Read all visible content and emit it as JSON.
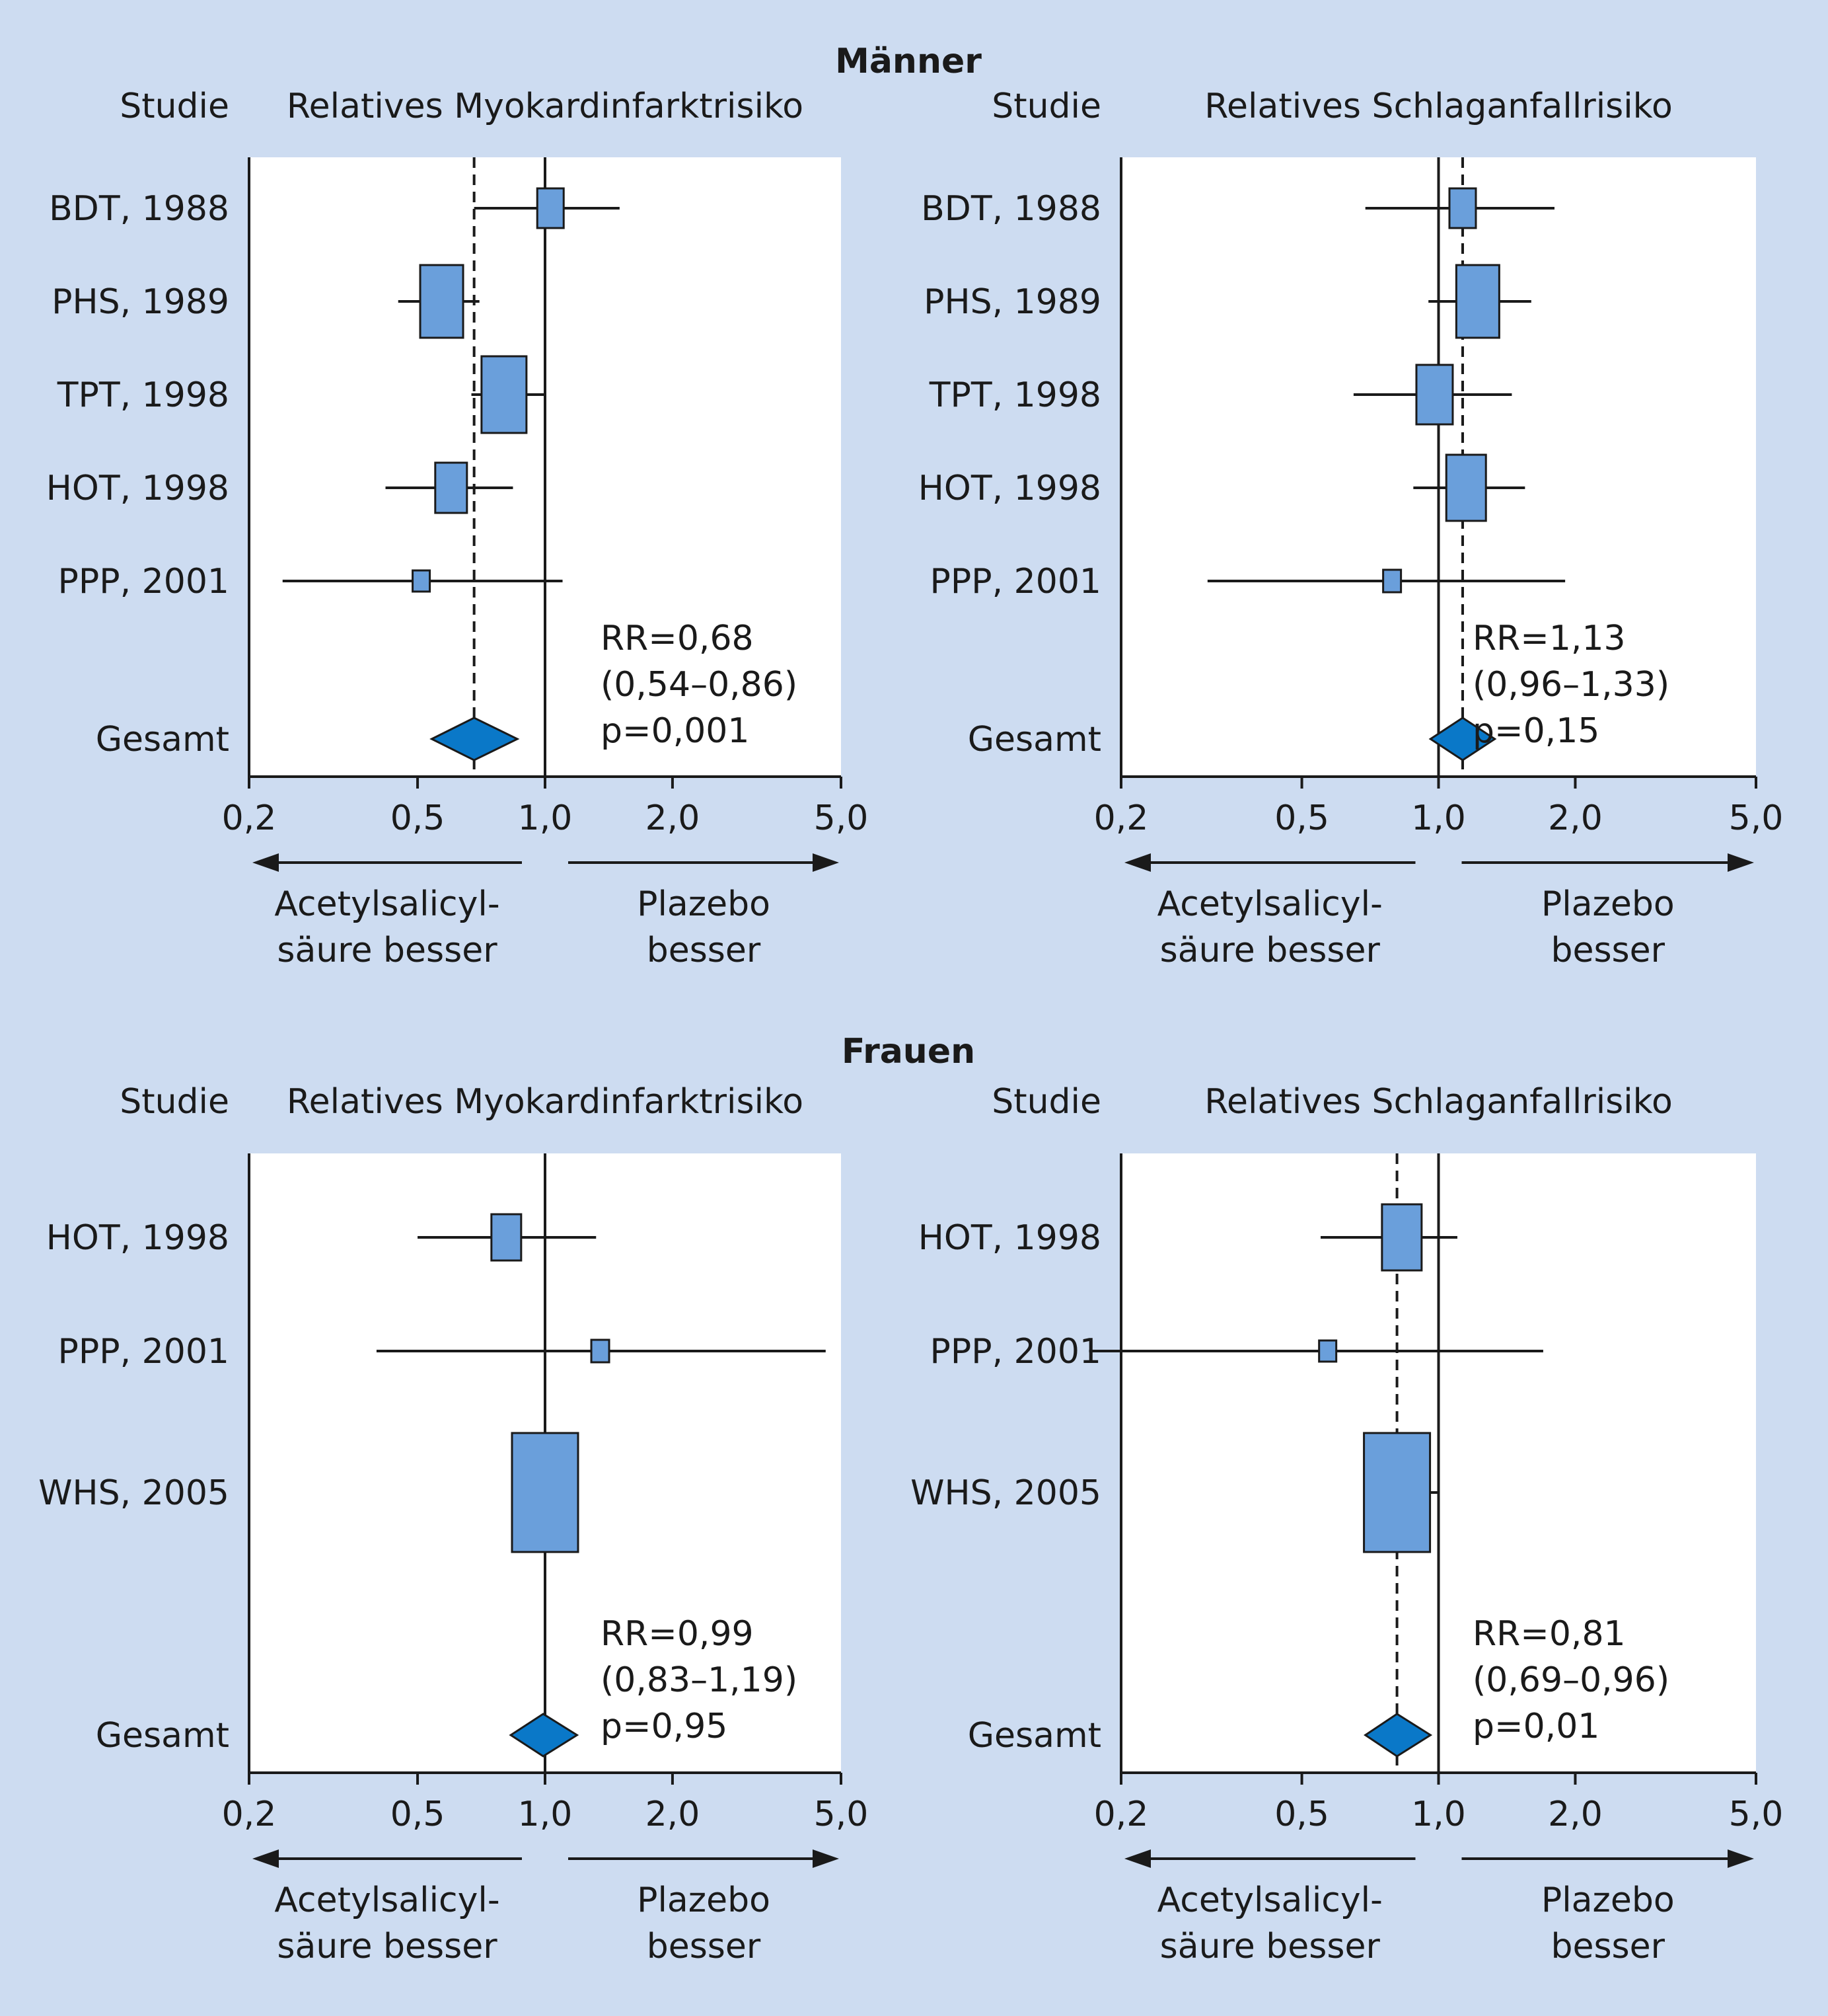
{
  "sections": [
    {
      "title": "Männer"
    },
    {
      "title": "Frauen"
    }
  ],
  "labels": {
    "study_header": "Studie",
    "overall": "Gesamt",
    "left_arrow": [
      "Acetylsalicyl-",
      "säure besser"
    ],
    "right_arrow": [
      "Plazebo",
      "besser"
    ]
  },
  "colors": {
    "background": "#cddcf1",
    "box_fill": "#6a9fdb",
    "diamond_fill": "#0a78c8",
    "line": "#1a1a1a"
  },
  "chart_data": [
    {
      "type": "forest",
      "section": "Männer",
      "title": "Relatives Myokardinfarktrisiko",
      "x_scale": "log",
      "x_ticks": [
        "0,2",
        "0,5",
        "1,0",
        "2,0",
        "5,0"
      ],
      "x_tick_values": [
        0.2,
        0.5,
        1.0,
        2.0,
        5.0
      ],
      "xlim": [
        0.2,
        5.0
      ],
      "reference_line": 1.0,
      "pooled_line": 0.68,
      "studies": [
        {
          "label": "BDT, 1988",
          "rr": 1.03,
          "ci": [
            0.68,
            1.5
          ],
          "weight": 0.2
        },
        {
          "label": "PHS, 1989",
          "rr": 0.57,
          "ci": [
            0.45,
            0.7
          ],
          "weight": 0.45
        },
        {
          "label": "TPT, 1998",
          "rr": 0.8,
          "ci": [
            0.67,
            1.0
          ],
          "weight": 0.48
        },
        {
          "label": "HOT, 1998",
          "rr": 0.6,
          "ci": [
            0.42,
            0.84
          ],
          "weight": 0.28
        },
        {
          "label": "PPP, 2001",
          "rr": 0.51,
          "ci": [
            0.24,
            1.1
          ],
          "weight": 0.06
        }
      ],
      "overall": {
        "rr": 0.68,
        "ci": [
          0.54,
          0.86
        ]
      },
      "stats": [
        "RR=0,68",
        "(0,54–0,86)",
        "p=0,001"
      ]
    },
    {
      "type": "forest",
      "section": "Männer",
      "title": "Relatives Schlaganfallrisiko",
      "x_scale": "log",
      "x_ticks": [
        "0,2",
        "0,5",
        "1,0",
        "2,0",
        "5,0"
      ],
      "x_tick_values": [
        0.2,
        0.5,
        1.0,
        2.0,
        5.0
      ],
      "xlim": [
        0.2,
        5.0
      ],
      "reference_line": 1.0,
      "pooled_line": 1.13,
      "studies": [
        {
          "label": "BDT, 1988",
          "rr": 1.13,
          "ci": [
            0.69,
            1.8
          ],
          "weight": 0.2
        },
        {
          "label": "PHS, 1989",
          "rr": 1.22,
          "ci": [
            0.95,
            1.6
          ],
          "weight": 0.45
        },
        {
          "label": "TPT, 1998",
          "rr": 0.98,
          "ci": [
            0.65,
            1.45
          ],
          "weight": 0.35
        },
        {
          "label": "HOT, 1998",
          "rr": 1.15,
          "ci": [
            0.88,
            1.55
          ],
          "weight": 0.4
        },
        {
          "label": "PPP, 2001",
          "rr": 0.79,
          "ci": [
            0.31,
            1.9
          ],
          "weight": 0.07
        }
      ],
      "overall": {
        "rr": 1.13,
        "ci": [
          0.96,
          1.33
        ]
      },
      "stats": [
        "RR=1,13",
        "(0,96–1,33)",
        "p=0,15"
      ]
    },
    {
      "type": "forest",
      "section": "Frauen",
      "title": "Relatives Myokardinfarktrisiko",
      "x_scale": "log",
      "x_ticks": [
        "0,2",
        "0,5",
        "1,0",
        "2,0",
        "5,0"
      ],
      "x_tick_values": [
        0.2,
        0.5,
        1.0,
        2.0,
        5.0
      ],
      "xlim": [
        0.2,
        5.0
      ],
      "reference_line": 1.0,
      "pooled_line": null,
      "studies": [
        {
          "label": "HOT, 1998",
          "rr": 0.81,
          "ci": [
            0.5,
            1.32
          ],
          "weight": 0.25
        },
        {
          "label": "PPP, 2001",
          "rr": 1.35,
          "ci": [
            0.4,
            4.6
          ],
          "weight": 0.07
        },
        {
          "label": "WHS, 2005",
          "rr": 1.0,
          "ci": [
            0.85,
            1.2
          ],
          "weight": 0.8
        }
      ],
      "overall": {
        "rr": 0.99,
        "ci": [
          0.83,
          1.19
        ]
      },
      "stats": [
        "RR=0,99",
        "(0,83–1,19)",
        "p=0,95"
      ]
    },
    {
      "type": "forest",
      "section": "Frauen",
      "title": "Relatives Schlaganfallrisiko",
      "x_scale": "log",
      "x_ticks": [
        "0,2",
        "0,5",
        "1,0",
        "2,0",
        "5,0"
      ],
      "x_tick_values": [
        0.2,
        0.5,
        1.0,
        2.0,
        5.0
      ],
      "xlim": [
        0.2,
        5.0
      ],
      "reference_line": 1.0,
      "pooled_line": 0.81,
      "studies": [
        {
          "label": "HOT, 1998",
          "rr": 0.83,
          "ci": [
            0.55,
            1.1
          ],
          "weight": 0.4
        },
        {
          "label": "PPP, 2001",
          "rr": 0.57,
          "ci": [
            0.17,
            1.7
          ],
          "weight": 0.06
        },
        {
          "label": "WHS, 2005",
          "rr": 0.81,
          "ci": [
            0.69,
            1.0
          ],
          "weight": 0.8
        }
      ],
      "overall": {
        "rr": 0.81,
        "ci": [
          0.69,
          0.96
        ]
      },
      "stats": [
        "RR=0,81",
        "(0,69–0,96)",
        "p=0,01"
      ]
    }
  ]
}
